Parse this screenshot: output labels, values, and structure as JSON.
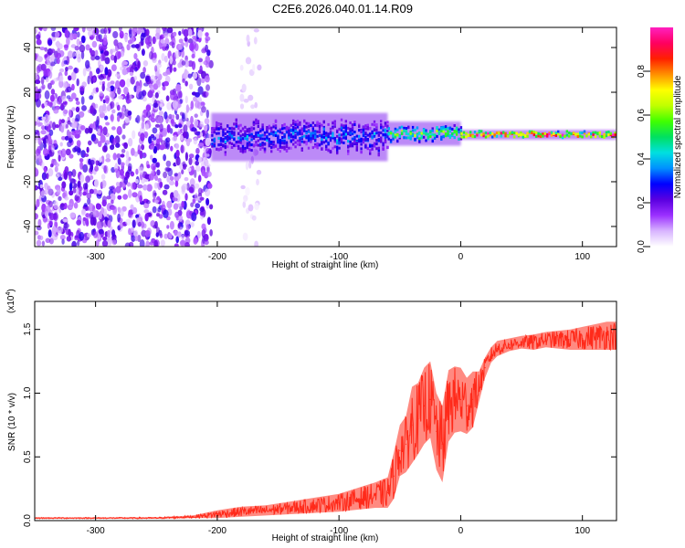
{
  "title": "C2E6.2026.040.01.14.R09",
  "chart_data": [
    {
      "type": "heatmap",
      "xlabel": "Height of straight line (km)",
      "ylabel": "Frequency (Hz)",
      "xlim": [
        -350,
        128
      ],
      "ylim": [
        -49,
        49
      ],
      "xticks": [
        -300,
        -200,
        -100,
        0,
        100
      ],
      "yticks": [
        -40,
        -20,
        0,
        20,
        40
      ],
      "colorbar": {
        "label": "Normalized spectral amplitude",
        "range": [
          0,
          1
        ],
        "ticks": [
          0.0,
          0.2,
          0.4,
          0.6,
          0.8
        ],
        "tick_labels": [
          "0.0",
          "0.2",
          "0.4",
          "0.6",
          "0.8"
        ],
        "colors": [
          "#ffffff",
          "#d8b4ff",
          "#9b30ff",
          "#5a00e0",
          "#0000ff",
          "#0090ff",
          "#00e0e0",
          "#00e060",
          "#40ff00",
          "#c0ff00",
          "#ffff00",
          "#ff9000",
          "#ff2000",
          "#ff0060",
          "#ff20c0"
        ]
      },
      "regions": [
        {
          "name": "broadband noise",
          "x_range": [
            -350,
            -205
          ],
          "freq_range": [
            -49,
            49
          ],
          "amplitude": 0.15
        },
        {
          "name": "noise streak",
          "x_range": [
            -180,
            -165
          ],
          "freq_range": [
            -49,
            49
          ],
          "amplitude": 0.05
        },
        {
          "name": "signal band",
          "x_range": [
            -205,
            -60
          ],
          "freq_center": 0,
          "freq_halfwidth": 6,
          "amplitude": 0.35
        },
        {
          "name": "signal band",
          "x_range": [
            -60,
            0
          ],
          "freq_center": 1.5,
          "freq_halfwidth": 3,
          "amplitude": 0.6
        },
        {
          "name": "carrier line",
          "x_range": [
            0,
            128
          ],
          "freq_center": 1,
          "freq_halfwidth": 1.2,
          "amplitude": 0.95
        }
      ]
    },
    {
      "type": "line",
      "xlabel": "Height of straight line (km)",
      "ylabel": "SNR (10 * v/v)",
      "yscale_label": "(x10",
      "yscale_exponent": "4",
      "xlim": [
        -350,
        128
      ],
      "ylim": [
        0,
        1.72
      ],
      "xticks": [
        -300,
        -200,
        -100,
        0,
        100
      ],
      "yticks": [
        0.0,
        0.5,
        1.0,
        1.5
      ],
      "ytick_labels": [
        "0.0",
        "0.5",
        "1.0",
        "1.5"
      ],
      "series": [
        {
          "name": "SNR",
          "color": "#ff2a1a",
          "x": [
            -350,
            -300,
            -250,
            -220,
            -200,
            -180,
            -160,
            -140,
            -120,
            -100,
            -80,
            -70,
            -60,
            -55,
            -50,
            -45,
            -40,
            -35,
            -30,
            -25,
            -20,
            -15,
            -10,
            -5,
            0,
            5,
            10,
            15,
            20,
            25,
            30,
            40,
            50,
            60,
            70,
            80,
            90,
            100,
            110,
            120,
            128
          ],
          "values": [
            0.02,
            0.02,
            0.02,
            0.03,
            0.05,
            0.07,
            0.08,
            0.1,
            0.12,
            0.14,
            0.18,
            0.2,
            0.22,
            0.35,
            0.55,
            0.6,
            0.75,
            0.8,
            0.9,
            0.95,
            0.7,
            0.6,
            0.9,
            0.95,
            0.95,
            0.9,
            0.95,
            1.05,
            1.2,
            1.3,
            1.35,
            1.38,
            1.4,
            1.4,
            1.42,
            1.42,
            1.42,
            1.43,
            1.44,
            1.45,
            1.45
          ],
          "noise": [
            0.005,
            0.005,
            0.006,
            0.01,
            0.03,
            0.04,
            0.04,
            0.05,
            0.06,
            0.07,
            0.09,
            0.1,
            0.12,
            0.18,
            0.2,
            0.22,
            0.3,
            0.28,
            0.3,
            0.3,
            0.3,
            0.3,
            0.28,
            0.26,
            0.25,
            0.22,
            0.22,
            0.12,
            0.08,
            0.06,
            0.06,
            0.05,
            0.05,
            0.06,
            0.06,
            0.07,
            0.08,
            0.09,
            0.1,
            0.11,
            0.11
          ]
        }
      ]
    }
  ]
}
